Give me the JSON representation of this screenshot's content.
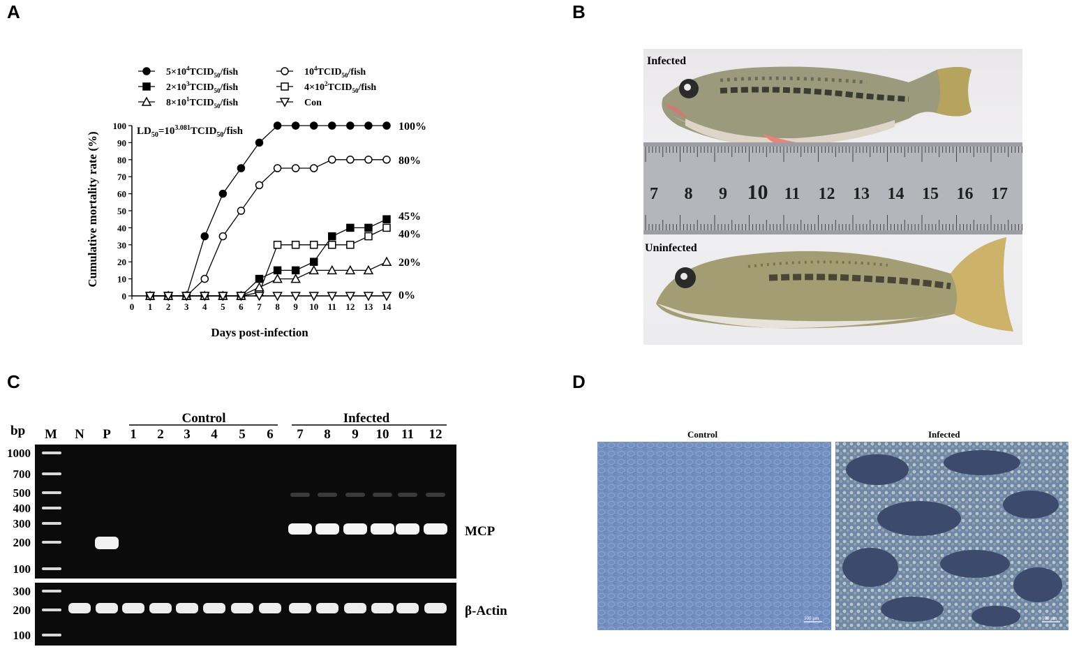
{
  "panels": {
    "a": {
      "letter": "A"
    },
    "b": {
      "letter": "B",
      "label_top": "Infected",
      "label_bottom": "Uninfected",
      "ruler_numbers": [
        "7",
        "8",
        "9",
        "10",
        "11",
        "12",
        "13",
        "14",
        "15",
        "16",
        "17"
      ]
    },
    "c": {
      "letter": "C",
      "bp_label": "bp",
      "lanes": [
        "M",
        "N",
        "P",
        "1",
        "2",
        "3",
        "4",
        "5",
        "6",
        "7",
        "8",
        "9",
        "10",
        "11",
        "12"
      ],
      "group_control": "Control",
      "group_infected": "Infected",
      "ladder_top": [
        "1000",
        "700",
        "500",
        "400",
        "300",
        "200",
        "100"
      ],
      "ladder_bottom": [
        "300",
        "200",
        "100"
      ],
      "gene_top": "MCP",
      "gene_bottom": "β-Actin"
    },
    "d": {
      "letter": "D",
      "label_control": "Control",
      "label_infected": "Infected",
      "scale_bar": "100 μm"
    }
  },
  "chart_data": {
    "type": "line",
    "title": "",
    "annotation": "LD50=10^3.081 TCID50/fish",
    "xlabel": "Days post-infection",
    "ylabel": "Cumulative mortality rate (%)",
    "xlim": [
      0,
      14
    ],
    "ylim": [
      0,
      100
    ],
    "x": [
      1,
      2,
      3,
      4,
      5,
      6,
      7,
      8,
      9,
      10,
      11,
      12,
      13,
      14
    ],
    "series": [
      {
        "name": "5×10⁴TCID₅₀/fish",
        "marker": "filled-circle",
        "end_label": "100%",
        "values": [
          0,
          0,
          0,
          35,
          60,
          75,
          90,
          100,
          100,
          100,
          100,
          100,
          100,
          100
        ]
      },
      {
        "name": "10⁴TCID₅₀/fish",
        "marker": "open-circle",
        "end_label": "80%",
        "values": [
          0,
          0,
          0,
          10,
          35,
          50,
          65,
          75,
          75,
          75,
          80,
          80,
          80,
          80
        ]
      },
      {
        "name": "2×10³TCID₅₀/fish",
        "marker": "filled-square",
        "end_label": "45%",
        "values": [
          0,
          0,
          0,
          0,
          0,
          0,
          10,
          15,
          15,
          20,
          35,
          40,
          40,
          45
        ]
      },
      {
        "name": "4×10²TCID₅₀/fish",
        "marker": "open-square",
        "end_label": "40%",
        "values": [
          0,
          0,
          0,
          0,
          0,
          0,
          2,
          30,
          30,
          30,
          30,
          30,
          35,
          40
        ]
      },
      {
        "name": "8×10¹TCID₅₀/fish",
        "marker": "open-triangle",
        "end_label": "20%",
        "values": [
          0,
          0,
          0,
          0,
          0,
          0,
          5,
          10,
          10,
          15,
          15,
          15,
          15,
          20
        ]
      },
      {
        "name": "Con",
        "marker": "open-triangle-down",
        "end_label": "0%",
        "values": [
          0,
          0,
          0,
          0,
          0,
          0,
          0,
          0,
          0,
          0,
          0,
          0,
          0,
          0
        ]
      }
    ],
    "legend_rows": [
      [
        "5×10⁴TCID₅₀/fish",
        "10⁴TCID₅₀/fish"
      ],
      [
        "2×10³TCID₅₀/fish",
        "4×10²TCID₅₀/fish"
      ],
      [
        "8×10¹TCID₅₀/fish",
        "Con"
      ]
    ],
    "grid": false,
    "legend_position": "top"
  }
}
